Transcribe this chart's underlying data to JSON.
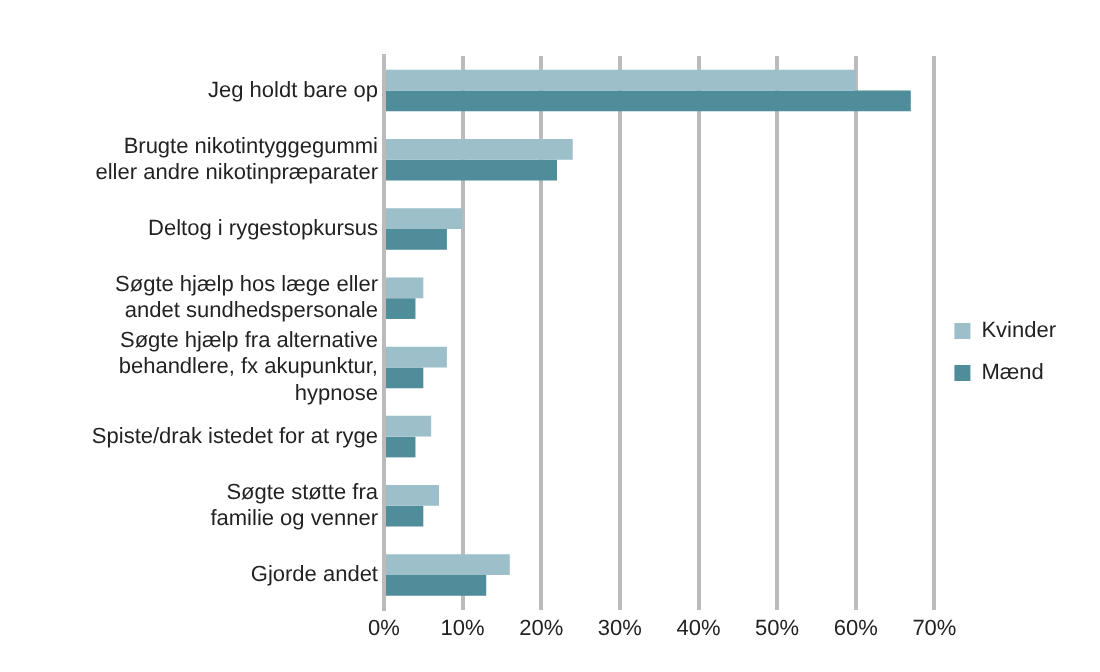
{
  "chart_data": {
    "type": "bar",
    "orientation": "horizontal",
    "categories": [
      "Jeg holdt bare op",
      "Brugte nikotintyggegummi\neller andre nikotinpræparater",
      "Deltog i rygestopkursus",
      "Søgte hjælp hos læge eller\nandet sundhedspersonale",
      "Søgte hjælp fra alternative\nbehandlere, fx akupunktur,\nhypnose",
      "Spiste/drak istedet for at ryge",
      "Søgte støtte fra\nfamilie og venner",
      "Gjorde andet"
    ],
    "series": [
      {
        "name": "Kvinder",
        "color": "#9cbfc9",
        "values": [
          60,
          24,
          10,
          5,
          8,
          6,
          7,
          16
        ]
      },
      {
        "name": "Mænd",
        "color": "#4f8d9b",
        "values": [
          67,
          22,
          8,
          4,
          5,
          4,
          5,
          13
        ]
      }
    ],
    "xlim": [
      0,
      70
    ],
    "xticks": [
      {
        "value": 0,
        "label": "0%"
      },
      {
        "value": 10,
        "label": "10%"
      },
      {
        "value": 20,
        "label": "20%"
      },
      {
        "value": 30,
        "label": "30%"
      },
      {
        "value": 40,
        "label": "40%"
      },
      {
        "value": 50,
        "label": "50%"
      },
      {
        "value": 60,
        "label": "60%"
      },
      {
        "value": 70,
        "label": "70%"
      }
    ],
    "grid": "x",
    "legend": "right"
  }
}
